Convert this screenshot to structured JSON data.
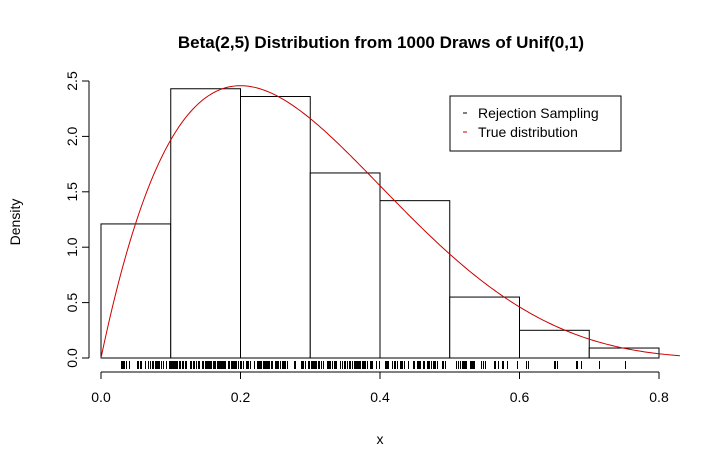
{
  "chart_data": {
    "type": "histogram",
    "title": "Beta(2,5) Distribution from 1000 Draws of Unif(0,1)",
    "xlabel": "x",
    "ylabel": "Density",
    "xlim": [
      0,
      0.83
    ],
    "ylim": [
      0,
      2.5
    ],
    "x_ticks": [
      "0.0",
      "0.2",
      "0.4",
      "0.6",
      "0.8"
    ],
    "x_tick_values": [
      0,
      0.2,
      0.4,
      0.6,
      0.8
    ],
    "y_ticks": [
      "0.0",
      "0.5",
      "1.0",
      "1.5",
      "2.0",
      "2.5"
    ],
    "y_tick_values": [
      0,
      0.5,
      1.0,
      1.5,
      2.0,
      2.5
    ],
    "bins": [
      {
        "x0": 0.0,
        "x1": 0.1,
        "density": 1.21
      },
      {
        "x0": 0.1,
        "x1": 0.2,
        "density": 2.43
      },
      {
        "x0": 0.2,
        "x1": 0.3,
        "density": 2.36
      },
      {
        "x0": 0.3,
        "x1": 0.4,
        "density": 1.67
      },
      {
        "x0": 0.4,
        "x1": 0.5,
        "density": 1.42
      },
      {
        "x0": 0.5,
        "x1": 0.6,
        "density": 0.55
      },
      {
        "x0": 0.6,
        "x1": 0.7,
        "density": 0.25
      },
      {
        "x0": 0.7,
        "x1": 0.8,
        "density": 0.09
      }
    ],
    "curve": {
      "name": "True distribution",
      "color": "#cc0000",
      "alpha": 2,
      "beta": 5
    },
    "rug_color": "#000000",
    "legend": {
      "position": "top-right",
      "entries": [
        {
          "label": "Rejection Sampling",
          "color": "#000000"
        },
        {
          "label": "True distribution",
          "color": "#cc0000"
        }
      ]
    }
  }
}
